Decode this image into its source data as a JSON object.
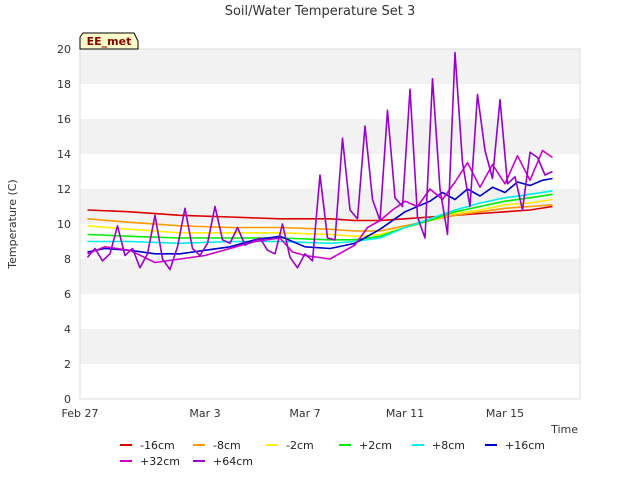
{
  "badge": "EE_met",
  "chart_data": {
    "type": "line",
    "title": "Soil/Water Temperature Set 3",
    "xlabel": "Time",
    "ylabel": "Temperature (C)",
    "ylim": [
      0,
      20
    ],
    "yticks": [
      0,
      2,
      4,
      6,
      8,
      10,
      12,
      14,
      16,
      18,
      20
    ],
    "xlim": [
      "2024-02-27",
      "2024-03-18"
    ],
    "xticks": [
      {
        "label": "Feb 27",
        "day": 0
      },
      {
        "label": "Mar 3",
        "day": 5
      },
      {
        "label": "Mar 7",
        "day": 9
      },
      {
        "label": "Mar 11",
        "day": 13
      },
      {
        "label": "Mar 15",
        "day": 17
      }
    ],
    "grid": "horizontal bands",
    "legend_position": "bottom",
    "series": [
      {
        "name": "-16cm",
        "color": "#dd0000",
        "x": [
          0.3,
          2,
          4,
          6,
          8,
          10,
          11,
          12,
          13,
          14,
          15,
          16,
          17,
          18,
          18.9
        ],
        "y": [
          10.8,
          10.7,
          10.5,
          10.4,
          10.3,
          10.3,
          10.2,
          10.2,
          10.3,
          10.4,
          10.5,
          10.6,
          10.7,
          10.8,
          11.0
        ]
      },
      {
        "name": "-8cm",
        "color": "#ff9900",
        "x": [
          0.3,
          2,
          4,
          6,
          8,
          10,
          11,
          12,
          13,
          14,
          15,
          16,
          17,
          18,
          18.9
        ],
        "y": [
          10.3,
          10.1,
          9.9,
          9.8,
          9.8,
          9.7,
          9.6,
          9.6,
          9.9,
          10.2,
          10.5,
          10.7,
          10.9,
          11.0,
          11.1
        ]
      },
      {
        "name": "-2cm",
        "color": "#ffee00",
        "x": [
          0.3,
          2,
          4,
          6,
          8,
          10,
          11,
          12,
          13,
          14,
          15,
          16,
          17,
          18,
          18.9
        ],
        "y": [
          9.9,
          9.7,
          9.5,
          9.5,
          9.5,
          9.4,
          9.3,
          9.4,
          9.8,
          10.2,
          10.6,
          10.8,
          11.1,
          11.2,
          11.4
        ]
      },
      {
        "name": "+2cm",
        "color": "#00ee00",
        "x": [
          0.3,
          2,
          4,
          6,
          8,
          10,
          11,
          12,
          13,
          14,
          15,
          16,
          17,
          18,
          18.9
        ],
        "y": [
          9.4,
          9.3,
          9.2,
          9.2,
          9.2,
          9.1,
          9.1,
          9.3,
          9.8,
          10.2,
          10.7,
          11.0,
          11.3,
          11.5,
          11.7
        ]
      },
      {
        "name": "+8cm",
        "color": "#00eeee",
        "x": [
          0.3,
          2,
          4,
          6,
          8,
          10,
          11,
          12,
          13,
          14,
          15,
          16,
          17,
          18,
          18.9
        ],
        "y": [
          9.0,
          9.0,
          8.9,
          9.0,
          9.0,
          8.9,
          9.0,
          9.2,
          9.8,
          10.3,
          10.8,
          11.2,
          11.5,
          11.7,
          11.9
        ]
      },
      {
        "name": "+16cm",
        "color": "#0000cc",
        "x": [
          0.3,
          1,
          2,
          3,
          4,
          5,
          6,
          7,
          8,
          8.5,
          9,
          10,
          11,
          12,
          13,
          14,
          14.5,
          15,
          15.5,
          16,
          16.5,
          17,
          17.5,
          18,
          18.5,
          18.9
        ],
        "y": [
          8.4,
          8.6,
          8.5,
          8.3,
          8.3,
          8.5,
          8.7,
          9.1,
          9.3,
          9.0,
          8.7,
          8.6,
          8.9,
          9.7,
          10.7,
          11.3,
          11.8,
          11.4,
          12.0,
          11.6,
          12.1,
          11.8,
          12.4,
          12.2,
          12.5,
          12.6
        ]
      },
      {
        "name": "+32cm",
        "color": "#cc00cc",
        "x": [
          0.3,
          1,
          2,
          3,
          4,
          5,
          6,
          7,
          8,
          8.5,
          9,
          10,
          11,
          11.5,
          12,
          12.5,
          13,
          13.5,
          14,
          14.5,
          15,
          15.5,
          16,
          16.5,
          17,
          17.5,
          18,
          18.5,
          18.9
        ],
        "y": [
          8.3,
          8.7,
          8.5,
          7.8,
          8.0,
          8.2,
          8.6,
          9.0,
          9.2,
          8.4,
          8.2,
          8.0,
          8.8,
          9.8,
          10.2,
          10.8,
          11.3,
          11.0,
          12.0,
          11.4,
          12.4,
          13.5,
          12.1,
          13.4,
          12.3,
          13.9,
          12.5,
          14.2,
          13.8
        ]
      },
      {
        "name": "+64cm",
        "color": "#9900cc",
        "x": [
          0.3,
          0.6,
          0.9,
          1.2,
          1.5,
          1.8,
          2.1,
          2.4,
          2.7,
          3.0,
          3.3,
          3.6,
          3.9,
          4.2,
          4.5,
          4.8,
          5.1,
          5.4,
          5.7,
          6.0,
          6.3,
          6.6,
          6.9,
          7.2,
          7.5,
          7.8,
          8.1,
          8.4,
          8.7,
          9.0,
          9.3,
          9.6,
          9.9,
          10.2,
          10.5,
          10.8,
          11.1,
          11.4,
          11.7,
          12.0,
          12.3,
          12.6,
          12.9,
          13.2,
          13.5,
          13.8,
          14.1,
          14.4,
          14.7,
          15.0,
          15.3,
          15.6,
          15.9,
          16.2,
          16.5,
          16.8,
          17.1,
          17.4,
          17.7,
          18.0,
          18.3,
          18.6,
          18.9
        ],
        "y": [
          8.1,
          8.6,
          7.9,
          8.3,
          9.9,
          8.2,
          8.6,
          7.5,
          8.3,
          10.5,
          8.0,
          7.4,
          8.7,
          10.9,
          8.6,
          8.2,
          8.9,
          11.0,
          9.1,
          8.9,
          9.8,
          8.8,
          9.0,
          9.2,
          8.5,
          8.3,
          10.0,
          8.1,
          7.5,
          8.3,
          7.9,
          12.8,
          9.2,
          9.1,
          14.9,
          10.8,
          10.3,
          15.6,
          11.4,
          10.2,
          16.5,
          11.5,
          11.0,
          17.7,
          10.4,
          9.2,
          18.3,
          12.0,
          9.4,
          19.8,
          13.5,
          11.0,
          17.4,
          14.2,
          12.6,
          17.1,
          12.3,
          12.7,
          10.8,
          14.1,
          13.8,
          12.8,
          13.0
        ]
      }
    ]
  }
}
